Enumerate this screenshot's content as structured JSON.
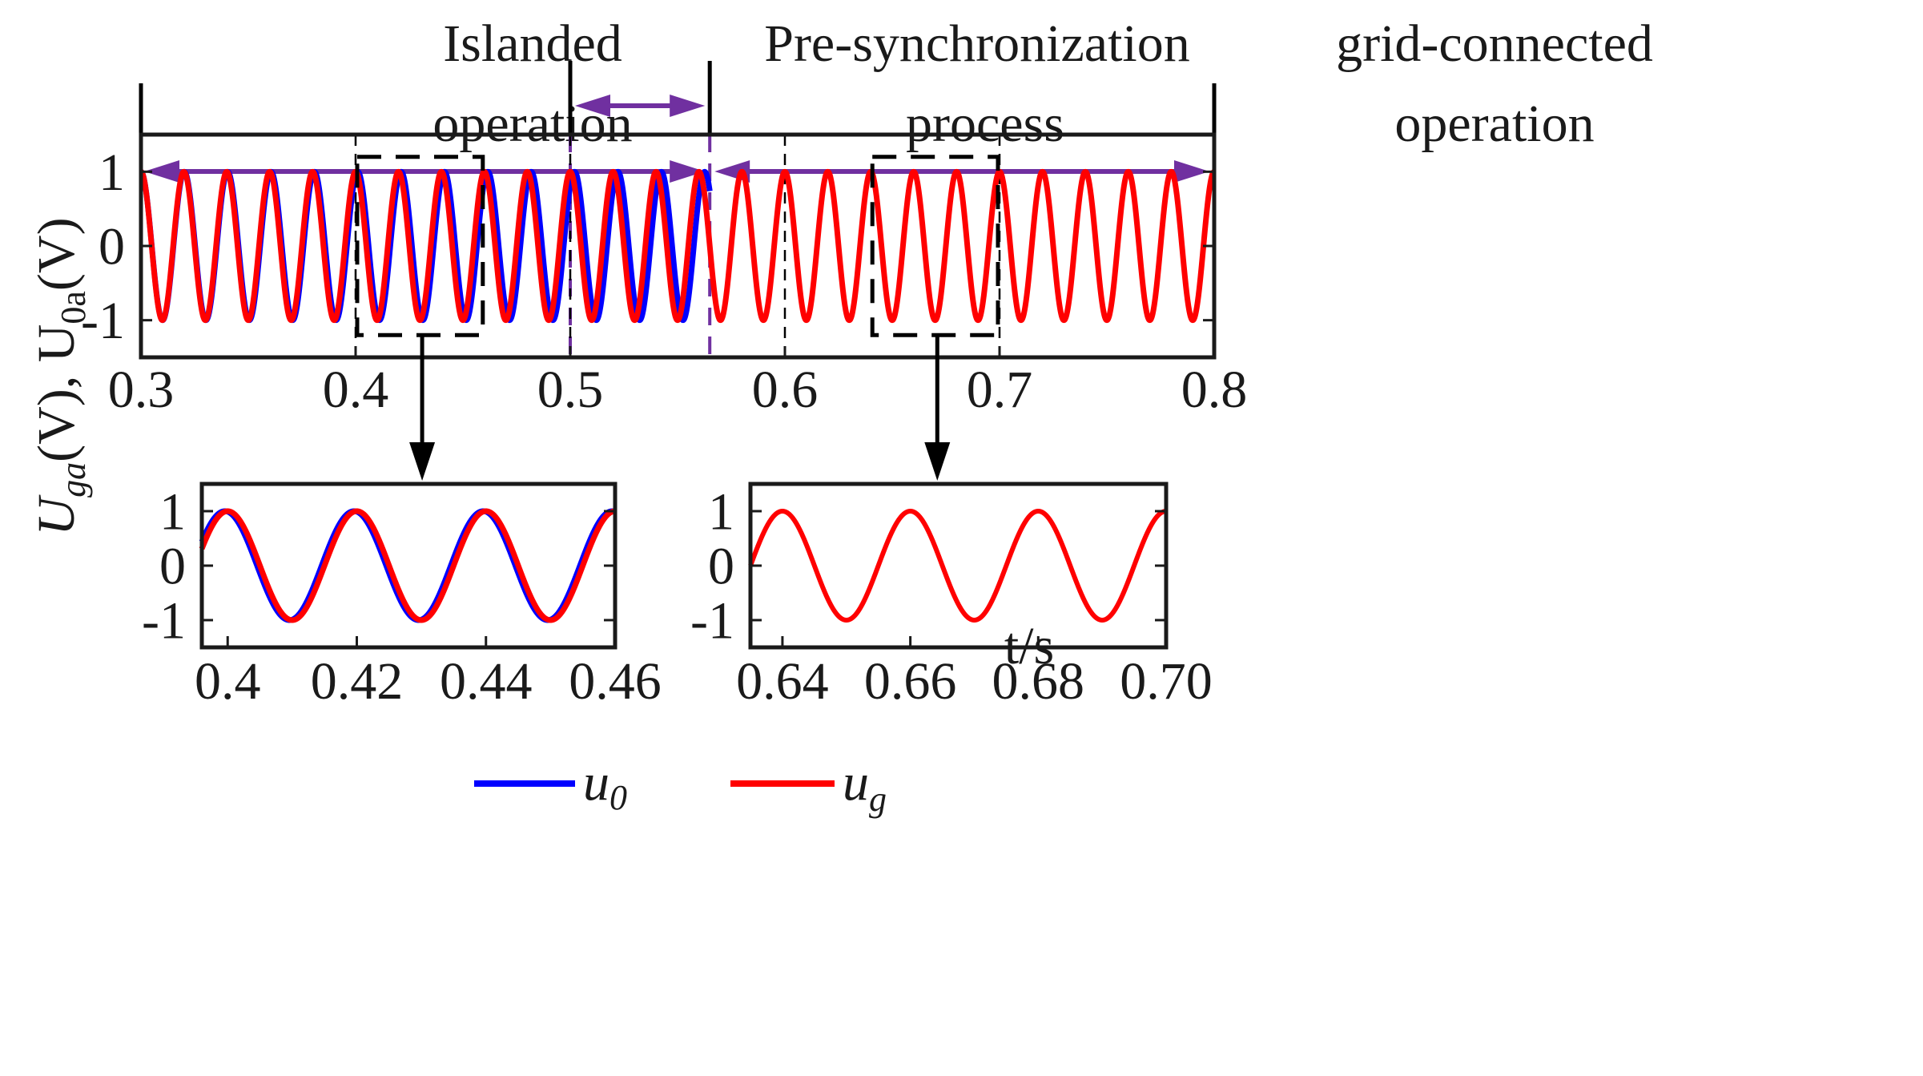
{
  "colors": {
    "u0": "#0000ff",
    "ug": "#ff0000",
    "phase": "#7030a0",
    "axis": "#1a1a1a",
    "zoom": "#000000"
  },
  "phases": {
    "islanded_line1": "Islanded",
    "islanded_line2": "operation",
    "presync_line1": "Pre-synchronization",
    "presync_line2": "process",
    "grid_line1": "grid-connected",
    "grid_line2": "operation",
    "boundaries": [
      0.3,
      0.5,
      0.565,
      0.8
    ]
  },
  "chart_data": [
    {
      "id": "main",
      "type": "line",
      "xlabel": "t/s",
      "ylabel_main": "U",
      "ylabel_main_sub": "ga",
      "ylabel_sep": "(V),  U",
      "ylabel_sub2": "0a",
      "ylabel_end": "(V)",
      "xlim": [
        0.3,
        0.8
      ],
      "ylim": [
        -1.5,
        1.5
      ],
      "xticks": [
        "0.3",
        "0.4",
        "0.5",
        "0.6",
        "0.7",
        "0.8"
      ],
      "xtick_values": [
        0.3,
        0.4,
        0.5,
        0.6,
        0.7,
        0.8
      ],
      "yticks": [
        "1",
        "0",
        "-1"
      ],
      "ytick_values": [
        1,
        0,
        -1
      ],
      "grid": "vertical dashed",
      "series": [
        {
          "name": "u0",
          "amplitude": 1,
          "frequency_hz": 49.5,
          "phase_lead_deg": 0,
          "x_end": 0.565
        },
        {
          "name": "ug",
          "amplitude": 1,
          "frequency_hz": 50,
          "phase_lead_deg": 0,
          "x_end": 0.8
        }
      ],
      "zoom_windows": [
        [
          0.4,
          0.46
        ],
        [
          0.64,
          0.7
        ]
      ]
    },
    {
      "id": "zoom_left",
      "type": "line",
      "xlim": [
        0.396,
        0.46
      ],
      "ylim": [
        -1.5,
        1.5
      ],
      "xticks": [
        "0.4",
        "0.42",
        "0.44",
        "0.46"
      ],
      "xtick_values": [
        0.4,
        0.42,
        0.44,
        0.46
      ],
      "yticks": [
        "1",
        "0",
        "-1"
      ],
      "ytick_values": [
        1,
        0,
        -1
      ],
      "legend_u0": "u",
      "legend_u0_sub": "0",
      "legend_ug": "u",
      "legend_ug_sub": "g",
      "series": [
        {
          "name": "u0",
          "amplitude": 1,
          "frequency_hz": 50,
          "phase_lead_deg": 8
        },
        {
          "name": "ug",
          "amplitude": 1,
          "frequency_hz": 50,
          "phase_lead_deg": 0
        }
      ]
    },
    {
      "id": "zoom_right",
      "type": "line",
      "xlim": [
        0.635,
        0.7
      ],
      "ylim": [
        -1.5,
        1.5
      ],
      "xticks": [
        "0.64",
        "0.66",
        "0.68",
        "0.70"
      ],
      "xtick_values": [
        0.64,
        0.66,
        0.68,
        0.7
      ],
      "yticks": [
        "1",
        "0",
        "-1"
      ],
      "ytick_values": [
        1,
        0,
        -1
      ],
      "series": [
        {
          "name": "ug",
          "amplitude": 1,
          "frequency_hz": 50,
          "phase_lead_deg": 0
        }
      ]
    }
  ]
}
